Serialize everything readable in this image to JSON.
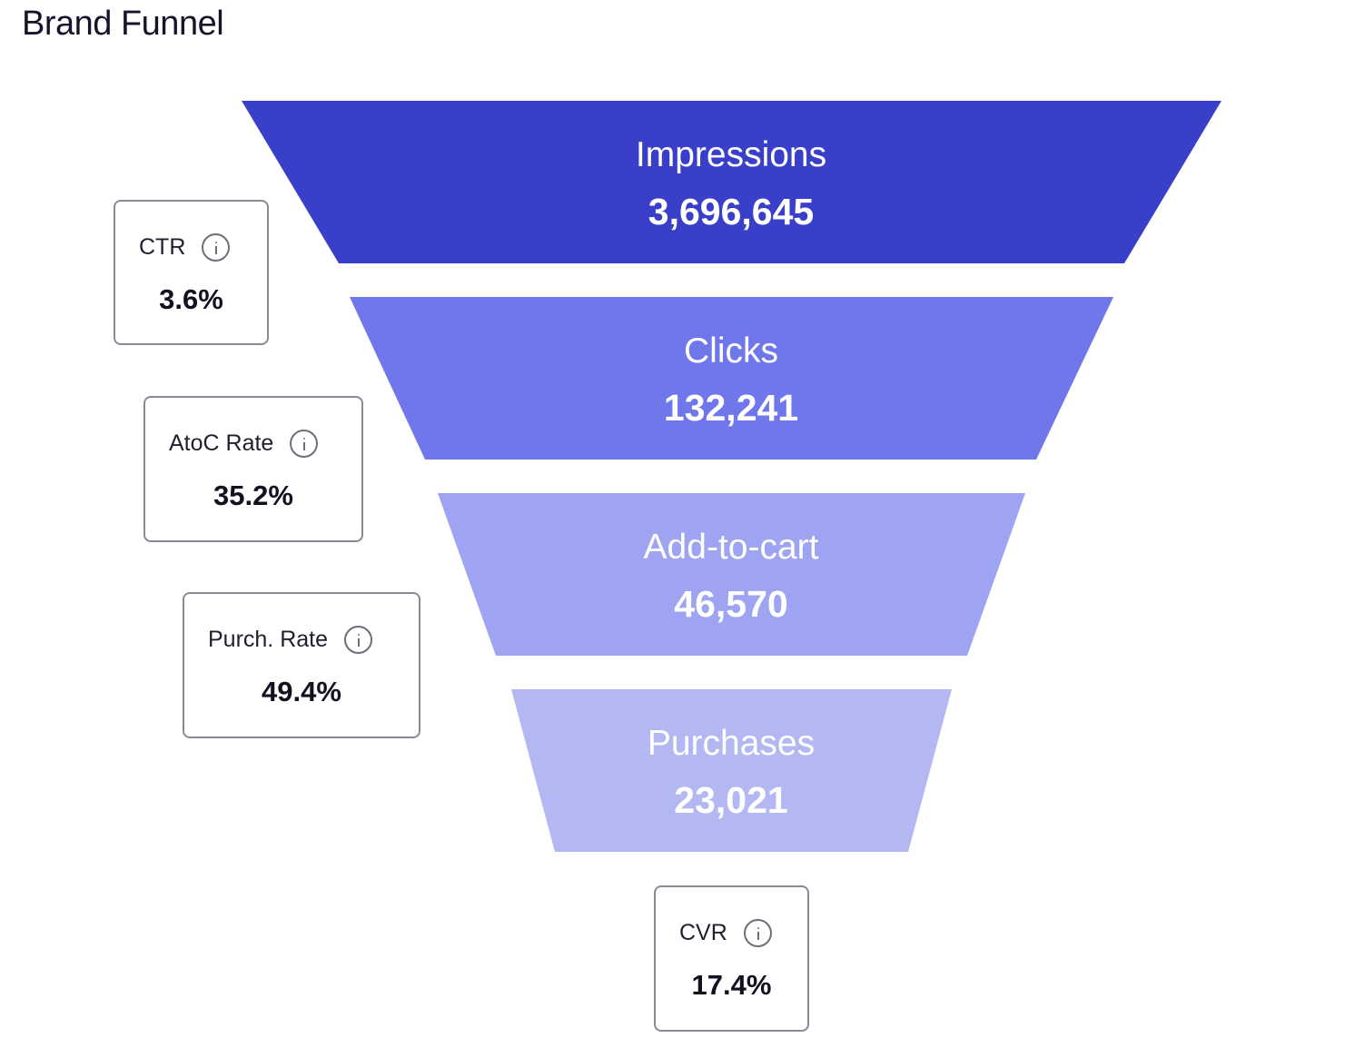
{
  "title": "Brand Funnel",
  "chart_data": {
    "type": "funnel",
    "title": "Brand Funnel",
    "stages": [
      {
        "name": "Impressions",
        "value": 3696645,
        "label": "3,696,645",
        "color": "#3a3fc9"
      },
      {
        "name": "Clicks",
        "value": 132241,
        "label": "132,241",
        "color": "#6f77ea"
      },
      {
        "name": "Add-to-cart",
        "value": 46570,
        "label": "46,570",
        "color": "#9ea4f2"
      },
      {
        "name": "Purchases",
        "value": 23021,
        "label": "23,021",
        "color": "#b3b8f2"
      }
    ],
    "rates": [
      {
        "name": "CTR",
        "value": "3.6%"
      },
      {
        "name": "AtoC Rate",
        "value": "35.2%"
      },
      {
        "name": "Purch. Rate",
        "value": "49.4%"
      },
      {
        "name": "CVR",
        "value": "17.4%"
      }
    ]
  },
  "icons": {
    "rate_info": "info-icon"
  }
}
